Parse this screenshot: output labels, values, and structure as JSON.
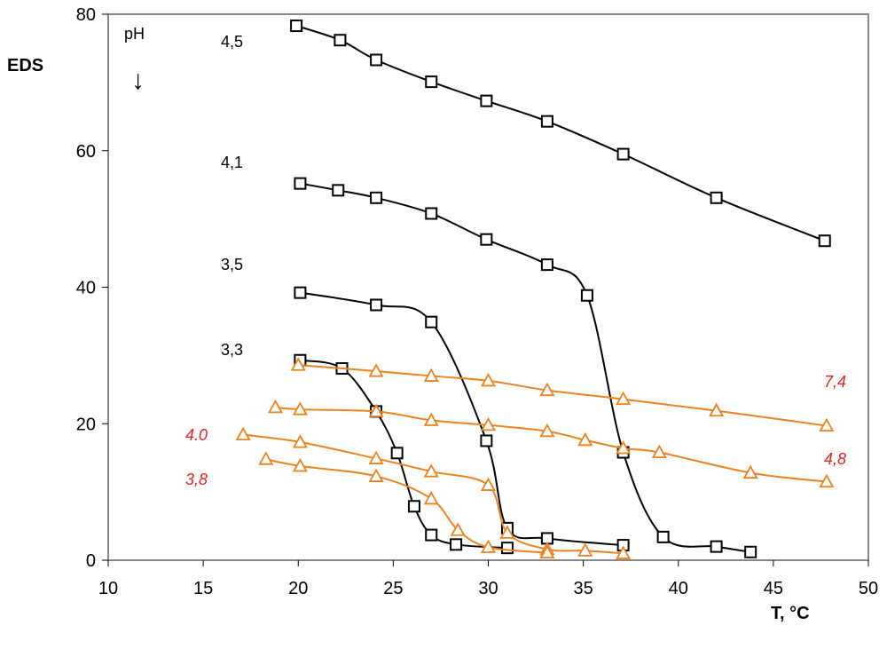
{
  "chart_data": {
    "type": "line",
    "title": "",
    "xlabel": "T, °C",
    "ylabel": "EDS",
    "xlim": [
      10,
      50
    ],
    "ylim": [
      0,
      80
    ],
    "xticks": [
      10,
      15,
      20,
      25,
      30,
      35,
      40,
      45,
      50
    ],
    "yticks": [
      0,
      20,
      40,
      60,
      80
    ],
    "grid": false,
    "legend": "none",
    "annotation_ph": "pH",
    "annotation_arrow": "↓",
    "colors": {
      "black_series": "#000000",
      "orange_series": "#f0821e",
      "red_labels": "#e8231f",
      "frame": "#888888"
    },
    "series": [
      {
        "label": "4,5",
        "marker": "square",
        "color": "#000000",
        "x": [
          19.9,
          22.2,
          24.1,
          27.0,
          29.9,
          33.1,
          37.1,
          42.0,
          47.7
        ],
        "y": [
          78.3,
          76.2,
          73.3,
          70.1,
          67.3,
          64.3,
          59.5,
          53.1,
          46.8
        ]
      },
      {
        "label": "4,1",
        "marker": "square",
        "color": "#000000",
        "x": [
          20.1,
          22.1,
          24.1,
          27.0,
          29.9,
          33.1,
          35.2,
          37.1,
          39.2,
          42.0,
          43.8
        ],
        "y": [
          55.2,
          54.2,
          53.1,
          50.8,
          47.0,
          43.3,
          38.8,
          15.8,
          3.4,
          2.0,
          1.2
        ]
      },
      {
        "label": "3,5",
        "marker": "square",
        "color": "#000000",
        "x": [
          20.1,
          24.1,
          27.0,
          29.9,
          31.0,
          33.1,
          37.1
        ],
        "y": [
          39.2,
          37.4,
          34.9,
          17.5,
          4.7,
          3.2,
          2.2
        ]
      },
      {
        "label": "3,3",
        "marker": "square",
        "color": "#000000",
        "x": [
          20.1,
          22.3,
          24.1,
          25.2,
          26.1,
          27.0,
          28.3,
          31.0
        ],
        "y": [
          29.3,
          28.1,
          21.8,
          15.7,
          7.9,
          3.7,
          2.3,
          1.8
        ]
      },
      {
        "label": "7,4",
        "marker": "triangle",
        "color": "#f0821e",
        "x": [
          20.0,
          24.1,
          27.0,
          30.0,
          33.1,
          37.1,
          42.0,
          47.8
        ],
        "y": [
          28.6,
          27.7,
          27.0,
          26.3,
          24.9,
          23.6,
          21.9,
          19.7
        ]
      },
      {
        "label": "4,8",
        "marker": "triangle",
        "color": "#f0821e",
        "x": [
          18.8,
          20.1,
          24.1,
          27.0,
          30.0,
          33.1,
          35.1,
          37.1,
          39.0,
          43.8,
          47.8
        ],
        "y": [
          22.4,
          22.1,
          21.8,
          20.5,
          19.8,
          18.9,
          17.6,
          16.4,
          15.8,
          12.8,
          11.5
        ]
      },
      {
        "label": "4.0",
        "marker": "triangle",
        "color": "#f0821e",
        "x": [
          17.1,
          20.1,
          24.1,
          27.0,
          30.0,
          31.0,
          33.1,
          35.1,
          37.1
        ],
        "y": [
          18.4,
          17.3,
          14.9,
          13.0,
          11.0,
          4.0,
          1.6,
          1.4,
          1.0
        ]
      },
      {
        "label": "3,8",
        "marker": "triangle",
        "color": "#f0821e",
        "x": [
          18.3,
          20.1,
          24.1,
          27.0,
          28.4,
          30.0,
          33.1
        ],
        "y": [
          14.8,
          13.8,
          12.3,
          9.0,
          4.4,
          1.9,
          1.1
        ]
      }
    ]
  }
}
